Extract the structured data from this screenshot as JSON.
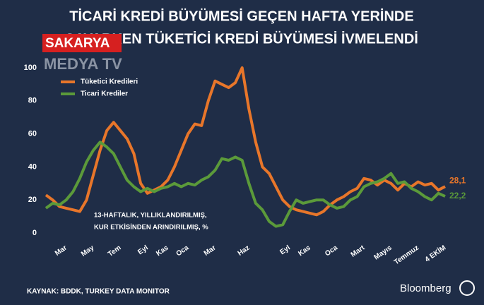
{
  "chart_data": {
    "type": "line",
    "title": [
      "TİCARİ KREDİ BÜYÜMESİ GEÇEN HAFTA YERİNDE",
      "SAYARKEN TÜKETİCİ KREDİ BÜYÜMESİ İVMELENDİ"
    ],
    "annotation": [
      "13-HAFTALIK, YILLIKLANDIRILMIŞ,",
      "KUR ETKİSİNDEN ARINDIRILMIŞ, %"
    ],
    "source": "KAYNAK: BDDK, TURKEY DATA MONITOR",
    "brand": "Bloomberg",
    "watermark": [
      "SAKARYA",
      "MEDYA TV"
    ],
    "categories": [
      null,
      null,
      null,
      "Mar",
      null,
      null,
      null,
      "May",
      null,
      null,
      null,
      "Tem",
      null,
      null,
      null,
      "Eyl",
      null,
      null,
      "Kas",
      null,
      null,
      "Oca",
      null,
      null,
      null,
      "Mar",
      null,
      null,
      null,
      null,
      "Haz",
      null,
      null,
      null,
      null,
      null,
      "Eyl",
      null,
      null,
      "Kas",
      null,
      null,
      null,
      "Oca",
      null,
      null,
      null,
      "Mart",
      null,
      null,
      null,
      "Mayıs",
      null,
      null,
      null,
      "Temmuz",
      null,
      null,
      null,
      "4 EKİM"
    ],
    "series": [
      {
        "name": "Tüketici Kredileri",
        "color": "#e8762a",
        "end_label": "28,1",
        "values": [
          23,
          20,
          16,
          15,
          14,
          13,
          20,
          35,
          50,
          62,
          67,
          62,
          57,
          48,
          30,
          24,
          26,
          28,
          32,
          40,
          50,
          60,
          66,
          65,
          80,
          92,
          90,
          88,
          91,
          100,
          75,
          55,
          40,
          36,
          28,
          20,
          16,
          14,
          13,
          12,
          11,
          13,
          17,
          20,
          22,
          25,
          27,
          33,
          32,
          29,
          32,
          30,
          26,
          30,
          28,
          31,
          29,
          30,
          26,
          28.1
        ]
      },
      {
        "name": "Ticari Krediler",
        "color": "#5b9a3a",
        "end_label": "22,2",
        "values": [
          15,
          18,
          17,
          20,
          25,
          33,
          43,
          50,
          55,
          52,
          48,
          40,
          32,
          28,
          25,
          27,
          25,
          27,
          28,
          30,
          28,
          30,
          29,
          32,
          34,
          38,
          45,
          44,
          46,
          44,
          30,
          18,
          14,
          7,
          4,
          5,
          13,
          20,
          18,
          19,
          20,
          20,
          17,
          15,
          16,
          20,
          22,
          28,
          30,
          31,
          33,
          36,
          30,
          31,
          27,
          25,
          22,
          20,
          24,
          22.2
        ]
      }
    ],
    "ylim": [
      0,
      100
    ],
    "yticks": [
      0,
      20,
      40,
      60,
      80,
      100
    ],
    "grid": false
  }
}
